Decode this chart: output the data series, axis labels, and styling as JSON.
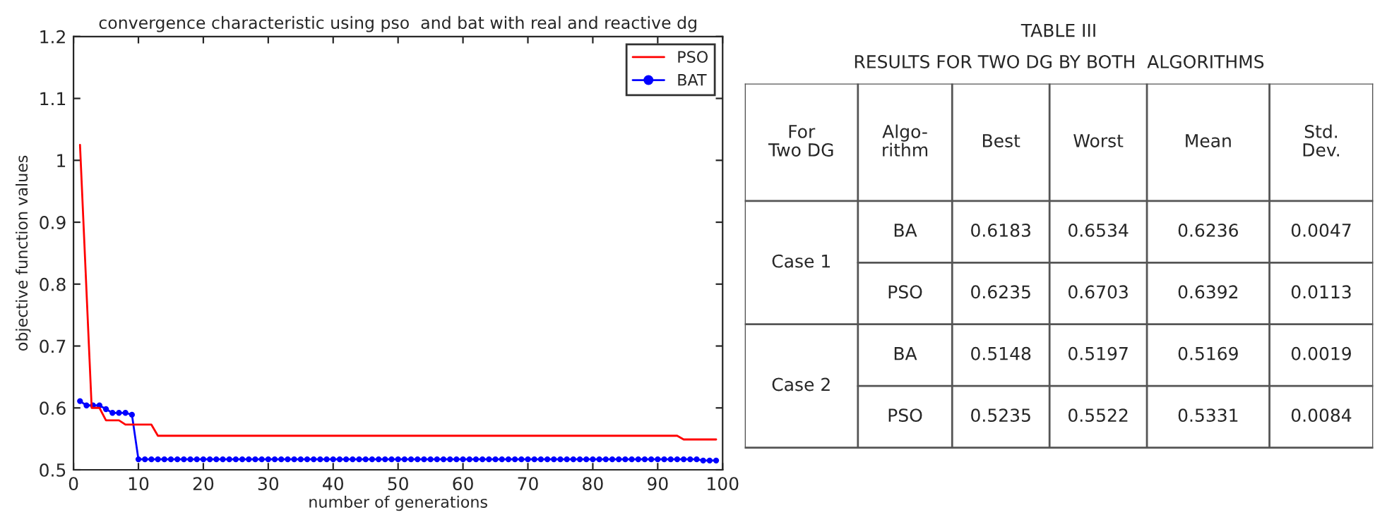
{
  "chart_data": [
    {
      "type": "line",
      "title": "convergence characteristic using pso  and bat with real and reactive dg",
      "xlabel": "number of generations",
      "ylabel": "objective function values",
      "xlim": [
        0,
        100
      ],
      "xticks": [
        0,
        10,
        20,
        30,
        40,
        50,
        60,
        70,
        80,
        90,
        100
      ],
      "ylim": [
        0.5,
        1.2
      ],
      "yticks": [
        0.5,
        0.6,
        0.7,
        0.8,
        0.9,
        1,
        1.1,
        1.2
      ],
      "legend": "top right",
      "series": [
        {
          "name": "PSO",
          "color": "#ff0000",
          "marker": "none",
          "x": [
            1,
            2.8,
            4,
            5,
            7,
            8,
            12,
            13,
            93,
            94,
            99
          ],
          "values": [
            1.025,
            0.6,
            0.6,
            0.58,
            0.58,
            0.573,
            0.573,
            0.555,
            0.555,
            0.549,
            0.549
          ]
        },
        {
          "name": "BAT",
          "color": "#0000ff",
          "marker": "circle",
          "x": [
            1,
            2,
            3,
            4,
            5,
            6,
            7,
            8,
            9,
            10,
            11,
            12,
            13,
            14,
            15,
            16,
            17,
            18,
            19,
            20,
            21,
            22,
            23,
            24,
            25,
            26,
            27,
            28,
            29,
            30,
            31,
            32,
            33,
            34,
            35,
            36,
            37,
            38,
            39,
            40,
            41,
            42,
            43,
            44,
            45,
            46,
            47,
            48,
            49,
            50,
            51,
            52,
            53,
            54,
            55,
            56,
            57,
            58,
            59,
            60,
            61,
            62,
            63,
            64,
            65,
            66,
            67,
            68,
            69,
            70,
            71,
            72,
            73,
            74,
            75,
            76,
            77,
            78,
            79,
            80,
            81,
            82,
            83,
            84,
            85,
            86,
            87,
            88,
            89,
            90,
            91,
            92,
            93,
            94,
            95,
            96,
            97,
            98,
            99
          ],
          "values": [
            0.611,
            0.604,
            0.604,
            0.604,
            0.598,
            0.592,
            0.592,
            0.592,
            0.589,
            0.517,
            0.517,
            0.517,
            0.517,
            0.517,
            0.517,
            0.517,
            0.517,
            0.517,
            0.517,
            0.517,
            0.517,
            0.517,
            0.517,
            0.517,
            0.517,
            0.517,
            0.517,
            0.517,
            0.517,
            0.517,
            0.517,
            0.517,
            0.517,
            0.517,
            0.517,
            0.517,
            0.517,
            0.517,
            0.517,
            0.517,
            0.517,
            0.517,
            0.517,
            0.517,
            0.517,
            0.517,
            0.517,
            0.517,
            0.517,
            0.517,
            0.517,
            0.517,
            0.517,
            0.517,
            0.517,
            0.517,
            0.517,
            0.517,
            0.517,
            0.517,
            0.517,
            0.517,
            0.517,
            0.517,
            0.517,
            0.517,
            0.517,
            0.517,
            0.517,
            0.517,
            0.517,
            0.517,
            0.517,
            0.517,
            0.517,
            0.517,
            0.517,
            0.517,
            0.517,
            0.517,
            0.517,
            0.517,
            0.517,
            0.517,
            0.517,
            0.517,
            0.517,
            0.517,
            0.517,
            0.517,
            0.517,
            0.517,
            0.517,
            0.517,
            0.517,
            0.517,
            0.515,
            0.515,
            0.515
          ]
        }
      ]
    },
    {
      "type": "other",
      "title": "TABLE III",
      "subtitle": "RESULTS FOR TWO DG BY BOTH  ALGORITHMS",
      "categories": [
        "For\nTwo DG",
        "Algo-\nrithm",
        "Best",
        "Worst",
        "Mean",
        "Std.\nDev."
      ],
      "cell_labels": [
        [
          "Case 1",
          "BA",
          "0.6183",
          "0.6534",
          "0.6236",
          "0.0047"
        ],
        [
          null,
          "PSO",
          "0.6235",
          "0.6703",
          "0.6392",
          "0.0113"
        ],
        [
          "Case 2",
          "BA",
          "0.5148",
          "0.5197",
          "0.5169",
          "0.0019"
        ],
        [
          null,
          "PSO",
          "0.5235",
          "0.5522",
          "0.5331",
          "0.0084"
        ]
      ]
    }
  ]
}
